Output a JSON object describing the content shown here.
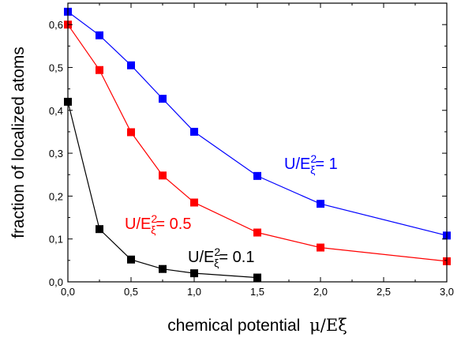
{
  "chart_data": {
    "type": "line",
    "xlabel": "chemical potential",
    "xlabel_math": "μ/Eξ",
    "ylabel": "fraction of localized atoms",
    "xlim": [
      0,
      3.0
    ],
    "ylim": [
      0,
      0.65
    ],
    "x_ticks": [
      "0,0",
      "0,5",
      "1,0",
      "1,5",
      "2,0",
      "2,5",
      "3,0"
    ],
    "x_tick_values": [
      0,
      0.5,
      1.0,
      1.5,
      2.0,
      2.5,
      3.0
    ],
    "y_ticks": [
      "0,0",
      "0,1",
      "0,2",
      "0,3",
      "0,4",
      "0,5",
      "0,6"
    ],
    "y_tick_values": [
      0,
      0.1,
      0.2,
      0.3,
      0.4,
      0.5,
      0.6
    ],
    "grid": false,
    "legend": "none",
    "marker": "square",
    "series": [
      {
        "name": "U/Eξ2= 1",
        "color": "#0000ff",
        "x": [
          0.0,
          0.25,
          0.5,
          0.75,
          1.0,
          1.5,
          2.0,
          3.0
        ],
        "y": [
          0.63,
          0.575,
          0.505,
          0.427,
          0.35,
          0.247,
          0.182,
          0.108
        ]
      },
      {
        "name": "U/Eξ2= 0.5",
        "color": "#ff0000",
        "x": [
          0.0,
          0.25,
          0.5,
          0.75,
          1.0,
          1.5,
          2.0,
          3.0
        ],
        "y": [
          0.6,
          0.494,
          0.349,
          0.248,
          0.185,
          0.115,
          0.08,
          0.048
        ]
      },
      {
        "name": "U/Eξ2= 0.1",
        "color": "#000000",
        "x": [
          0.0,
          0.25,
          0.5,
          0.75,
          1.0,
          1.5
        ],
        "y": [
          0.42,
          0.123,
          0.052,
          0.03,
          0.02,
          0.01
        ]
      }
    ],
    "annotations": [
      {
        "series": "U/Eξ2= 1",
        "base": "U/E",
        "sup": "2",
        "sub": "ξ",
        "suffix": "= 1",
        "color": "#0000ff"
      },
      {
        "series": "U/Eξ2= 0.5",
        "base": "U/E",
        "sup": "2",
        "sub": "ξ",
        "suffix": "= 0.5",
        "color": "#ff0000"
      },
      {
        "series": "U/Eξ2= 0.1",
        "base": "U/E",
        "sup": "2",
        "sub": "ξ",
        "suffix": "= 0.1",
        "color": "#000000"
      }
    ]
  }
}
